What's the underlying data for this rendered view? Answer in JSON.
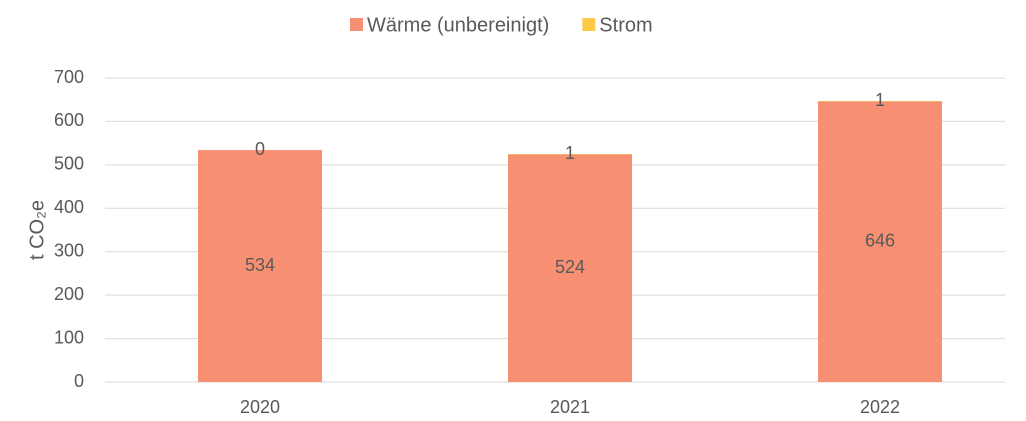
{
  "chart_data": {
    "type": "stacked_bar",
    "y_label": "t CO₂e",
    "categories": [
      "2020",
      "2021",
      "2022"
    ],
    "series": [
      {
        "name": "Wärme (unbereinigt)",
        "color": "#f79072",
        "values": [
          534,
          524,
          646
        ]
      },
      {
        "name": "Strom",
        "color": "#ffc94a",
        "values": [
          0,
          1,
          1
        ]
      }
    ],
    "ylim": [
      0,
      700
    ],
    "yticks": [
      0,
      100,
      200,
      300,
      400,
      500,
      600,
      700
    ],
    "grid": true,
    "legend": "top"
  }
}
